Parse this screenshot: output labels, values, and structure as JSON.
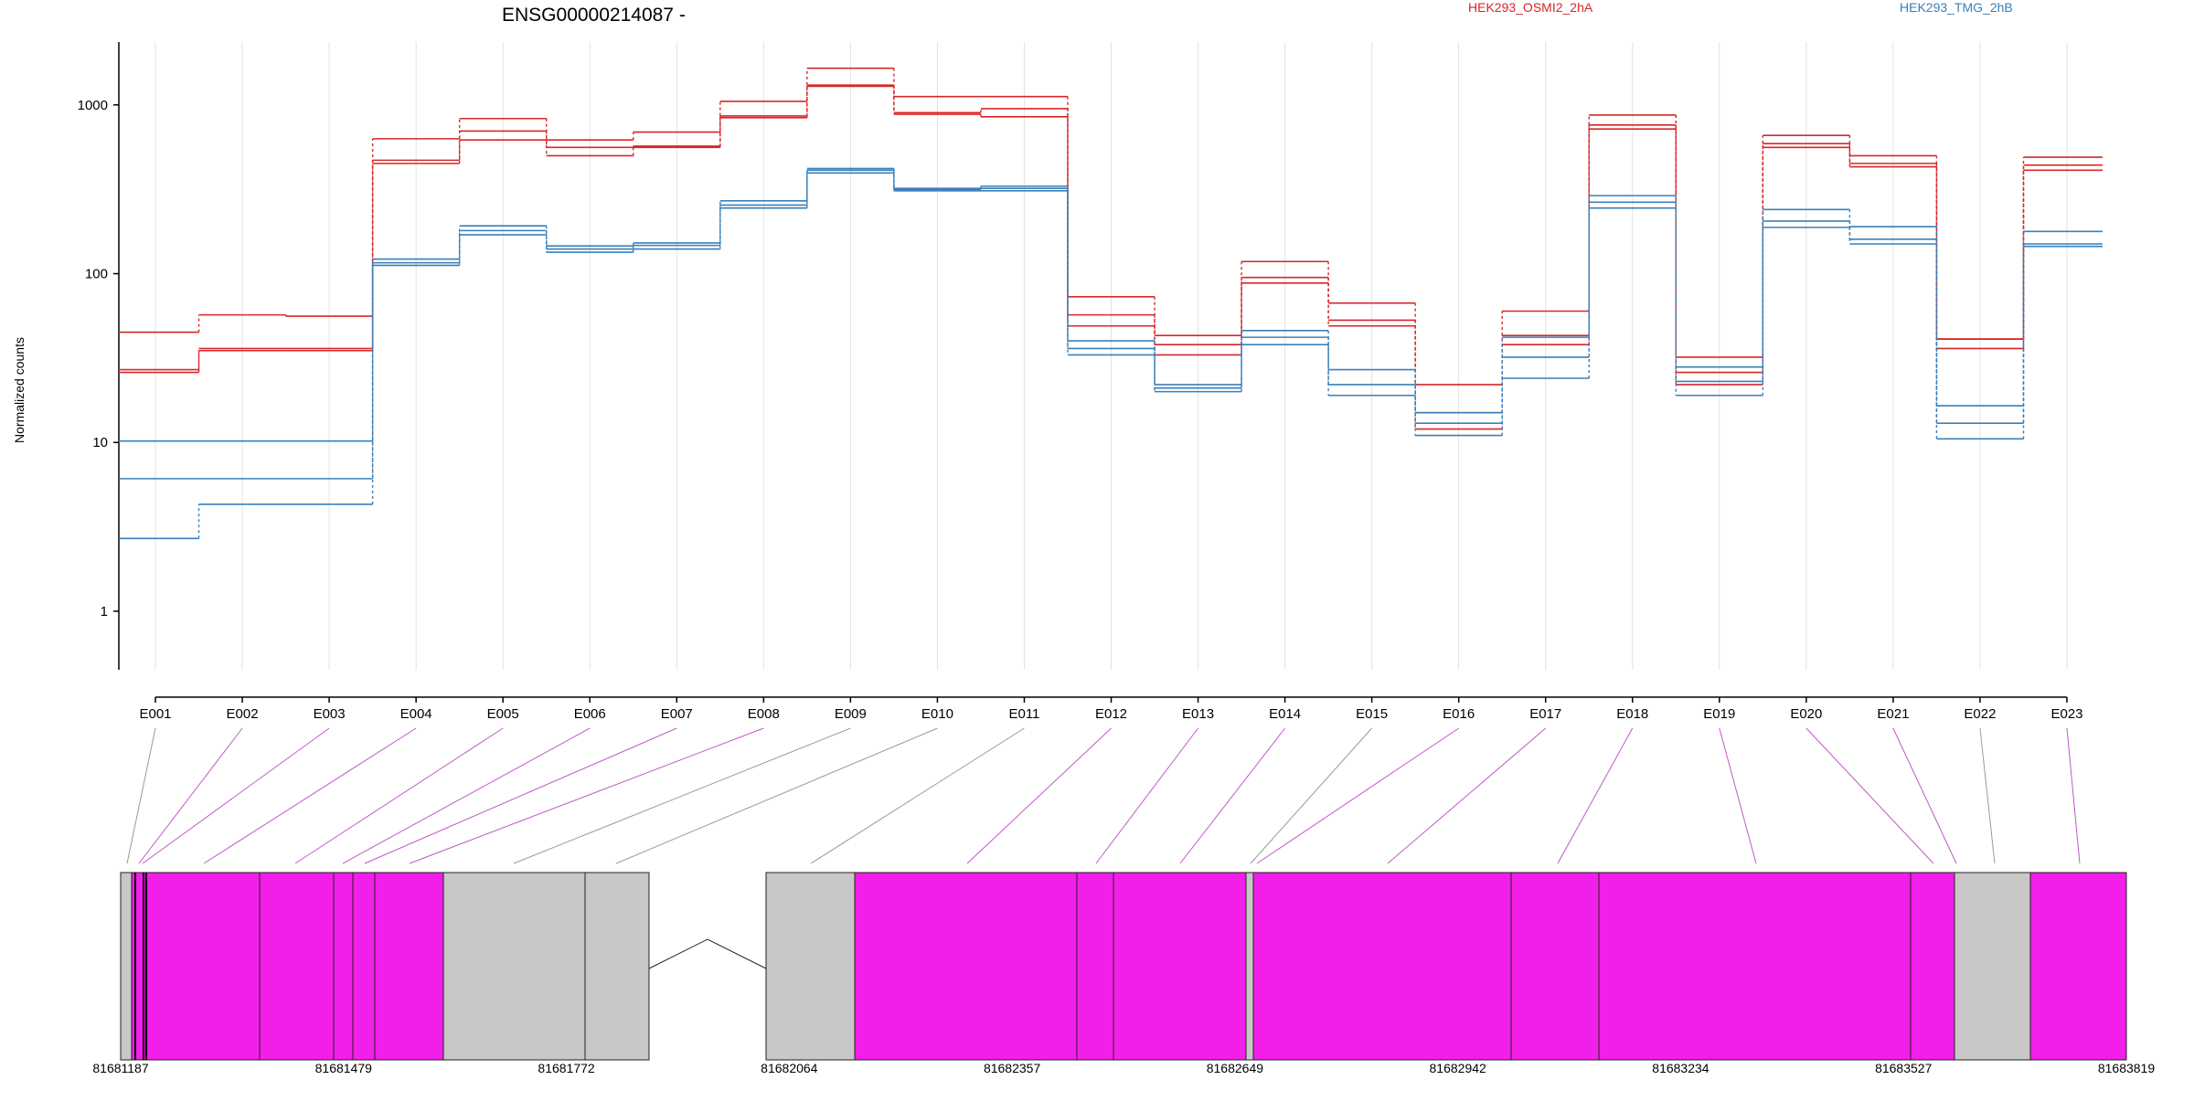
{
  "chart_data": {
    "type": "line",
    "title": "ENSG00000214087 -",
    "ylabel": "Normalized counts",
    "yscale": "log",
    "ylim": [
      0.45,
      2300
    ],
    "yticks": [
      1,
      10,
      100,
      1000
    ],
    "ytick_labels": [
      "1",
      "10",
      "100",
      "1000"
    ],
    "grid": "vertical-at-exons",
    "legend_position": "top",
    "colors": {
      "HEK293_OSMI2_2hA": "#d62728",
      "HEK293_TMG_2hB": "#3a7fb8"
    },
    "categories": [
      "E001",
      "E002",
      "E003",
      "E004",
      "E005",
      "E006",
      "E007",
      "E008",
      "E009",
      "E010",
      "E011",
      "E012",
      "E013",
      "E014",
      "E015",
      "E016",
      "E017",
      "E018",
      "E019",
      "E020",
      "E021",
      "E022",
      "E023"
    ],
    "series": [
      {
        "name": "HEK293_OSMI2_2hA",
        "group": "HEK293_OSMI2_2hA",
        "values": [
          45,
          57,
          56,
          630,
          830,
          620,
          690,
          1050,
          1650,
          1120,
          1120,
          73,
          43,
          118,
          67,
          22,
          60,
          870,
          32,
          660,
          500,
          41,
          490
        ]
      },
      {
        "name": "HEK293_OSMI2_2hA",
        "group": "HEK293_OSMI2_2hA",
        "values": [
          27,
          36,
          36,
          470,
          700,
          560,
          570,
          860,
          1310,
          900,
          950,
          57,
          38,
          95,
          53,
          15,
          43,
          760,
          26,
          590,
          450,
          41,
          440
        ]
      },
      {
        "name": "HEK293_OSMI2_2hA",
        "group": "HEK293_OSMI2_2hA",
        "values": [
          26,
          35,
          35,
          450,
          620,
          500,
          560,
          840,
          1290,
          880,
          850,
          49,
          33,
          88,
          49,
          12,
          38,
          720,
          22,
          560,
          430,
          36,
          410
        ]
      },
      {
        "name": "HEK293_TMG_2hB",
        "group": "HEK293_TMG_2hB",
        "values": [
          10.2,
          10.2,
          10.2,
          122,
          192,
          146,
          152,
          270,
          420,
          320,
          330,
          40,
          22,
          46,
          27,
          15,
          42,
          290,
          28,
          240,
          190,
          16.5,
          178
        ]
      },
      {
        "name": "HEK293_TMG_2hB",
        "group": "HEK293_TMG_2hB",
        "values": [
          6.1,
          6.1,
          6.1,
          116,
          180,
          140,
          147,
          255,
          410,
          315,
          320,
          36,
          21,
          42,
          22,
          13,
          32,
          265,
          23,
          205,
          160,
          13,
          150
        ]
      },
      {
        "name": "HEK293_TMG_2hB",
        "group": "HEK293_TMG_2hB",
        "values": [
          2.7,
          4.3,
          4.3,
          112,
          170,
          134,
          140,
          245,
          395,
          310,
          310,
          33,
          20,
          38,
          19,
          11,
          24,
          245,
          19,
          188,
          150,
          10.5,
          145
        ]
      }
    ],
    "gene_model": {
      "coordinate_labels": [
        "81681187",
        "81681479",
        "81681772",
        "81682064",
        "81682357",
        "81682649",
        "81682942",
        "81683234",
        "81683527",
        "81683819"
      ],
      "exon_feature_color": "#f21ee9",
      "intron_color": "#c8c8c8"
    }
  }
}
